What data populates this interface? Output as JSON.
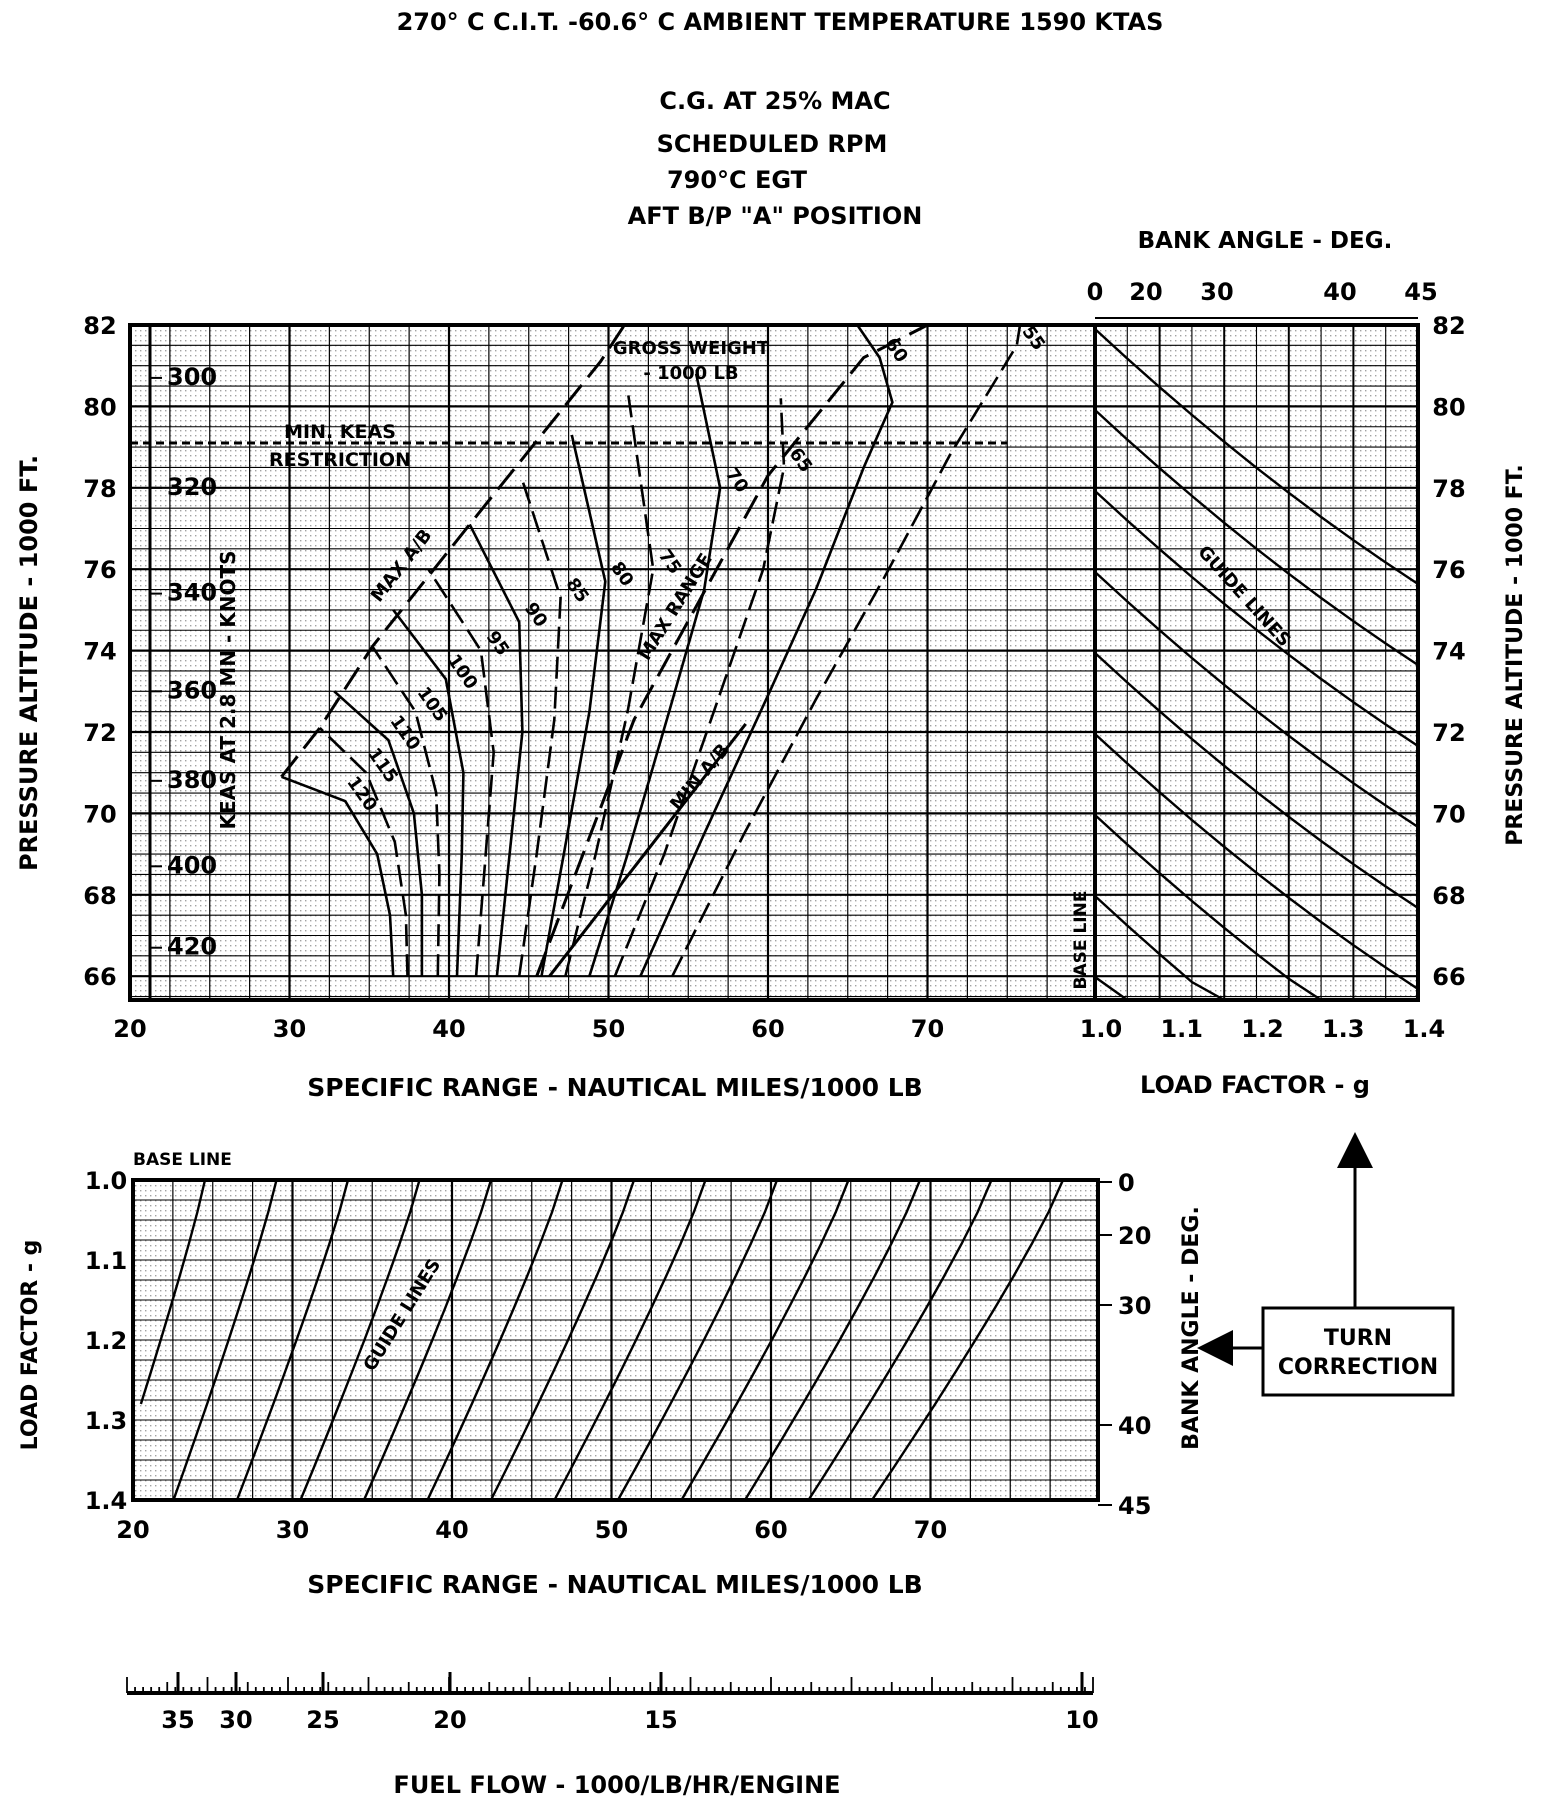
{
  "header": {
    "line1": "270° C  C.I.T.  -60.6° C  AMBIENT TEMPERATURE  1590 KTAS",
    "line2": "C.G. AT 25% MAC",
    "line3": "SCHEDULED RPM",
    "line4": "790°C EGT",
    "line5": "AFT B/P \"A\" POSITION"
  },
  "chart_data": [
    {
      "type": "line",
      "name": "main",
      "xlabel": "SPECIFIC RANGE - NAUTICAL MILES/1000 LB",
      "ylabel": "PRESSURE ALTITUDE - 1000 FT.",
      "xlim": [
        20,
        80
      ],
      "ylim": [
        65,
        82
      ],
      "x_ticks": [
        "20",
        "30",
        "40",
        "50",
        "60",
        "70"
      ],
      "y_ticks": [
        "66",
        "68",
        "70",
        "72",
        "74",
        "76",
        "78",
        "80",
        "82"
      ],
      "grid": true,
      "keas_scale": {
        "label": "KEAS AT 2.8 MN - KNOTS",
        "ticks": [
          {
            "label": "300",
            "alt": 80.7
          },
          {
            "label": "320",
            "alt": 78.0
          },
          {
            "label": "340",
            "alt": 75.4
          },
          {
            "label": "360",
            "alt": 73.0
          },
          {
            "label": "380",
            "alt": 70.8
          },
          {
            "label": "400",
            "alt": 68.7
          },
          {
            "label": "420",
            "alt": 66.7
          }
        ]
      },
      "min_keas": {
        "text": [
          "MIN. KEAS",
          "RESTRICTION"
        ],
        "alt": 79.1
      },
      "gross_weight_label": [
        "GROSS WEIGHT",
        "- 1000 LB"
      ],
      "weight_curves": [
        {
          "label": "120",
          "points": [
            [
              36.5,
              66
            ],
            [
              36.3,
              67.5
            ],
            [
              35.5,
              69
            ],
            [
              33.5,
              70.3
            ],
            [
              29.5,
              70.9
            ]
          ]
        },
        {
          "label": "115",
          "points": [
            [
              37.4,
              66
            ],
            [
              37.3,
              67.5
            ],
            [
              36.6,
              69.3
            ],
            [
              34.8,
              71
            ],
            [
              31.9,
              72.1
            ]
          ]
        },
        {
          "label": "110",
          "points": [
            [
              38.3,
              66
            ],
            [
              38.3,
              68
            ],
            [
              37.8,
              70
            ],
            [
              36.2,
              71.8
            ],
            [
              32.8,
              73.0
            ]
          ]
        },
        {
          "label": "105",
          "points": [
            [
              39.3,
              66
            ],
            [
              39.4,
              68.5
            ],
            [
              39.2,
              70.5
            ],
            [
              37.9,
              72.5
            ],
            [
              35.2,
              74.1
            ]
          ]
        },
        {
          "label": "100",
          "points": [
            [
              40.5,
              66
            ],
            [
              40.8,
              69
            ],
            [
              40.9,
              71
            ],
            [
              39.8,
              73.3
            ],
            [
              36.5,
              75.0
            ]
          ]
        },
        {
          "label": "95",
          "points": [
            [
              41.7,
              66
            ],
            [
              42.3,
              69
            ],
            [
              42.8,
              71.5
            ],
            [
              42.0,
              74
            ],
            [
              38.7,
              76.0
            ]
          ]
        },
        {
          "label": "90",
          "points": [
            [
              43.0,
              66
            ],
            [
              43.8,
              69
            ],
            [
              44.6,
              72
            ],
            [
              44.4,
              74.7
            ],
            [
              41.3,
              77.1
            ]
          ]
        },
        {
          "label": "85",
          "points": [
            [
              44.4,
              66
            ],
            [
              45.5,
              69
            ],
            [
              46.6,
              72.3
            ],
            [
              47.0,
              75.3
            ],
            [
              44.5,
              78.3
            ]
          ]
        },
        {
          "label": "80",
          "points": [
            [
              45.8,
              66
            ],
            [
              47.2,
              69
            ],
            [
              48.8,
              72.5
            ],
            [
              49.8,
              75.7
            ],
            [
              47.7,
              79.3
            ]
          ]
        },
        {
          "label": "75",
          "points": [
            [
              47.3,
              66
            ],
            [
              49.2,
              69
            ],
            [
              51.2,
              72.5
            ],
            [
              52.8,
              76
            ],
            [
              51.2,
              80.4
            ]
          ]
        },
        {
          "label": "70",
          "points": [
            [
              48.8,
              66
            ],
            [
              51.2,
              69
            ],
            [
              53.8,
              72.5
            ],
            [
              56.0,
              75.5
            ],
            [
              57.0,
              78
            ],
            [
              55.5,
              80.8
            ]
          ]
        },
        {
          "label": "65",
          "points": [
            [
              50.4,
              66
            ],
            [
              53.5,
              69
            ],
            [
              56.6,
              72.5
            ],
            [
              59.7,
              76
            ],
            [
              61.0,
              78.5
            ],
            [
              60.8,
              80.2
            ]
          ]
        },
        {
          "label": "60",
          "points": [
            [
              52,
              66
            ],
            [
              56,
              69.5
            ],
            [
              60,
              72.9
            ],
            [
              63,
              75.5
            ],
            [
              66,
              78.5
            ],
            [
              67.8,
              80.1
            ],
            [
              67,
              81.2
            ],
            [
              65.6,
              82
            ]
          ]
        },
        {
          "label": "55",
          "points": [
            [
              54,
              66
            ],
            [
              58.5,
              69.5
            ],
            [
              63,
              72.8
            ],
            [
              67.3,
              75.8
            ],
            [
              71.4,
              78.8
            ],
            [
              74.2,
              80.6
            ],
            [
              75.6,
              81.5
            ],
            [
              75.8,
              82
            ]
          ]
        }
      ],
      "boundaries": [
        {
          "label": "MAX A/B",
          "style": "dashed",
          "points": [
            [
              29.5,
              70.9
            ],
            [
              31.9,
              72.1
            ],
            [
              35.2,
              74.1
            ],
            [
              41.3,
              77.1
            ],
            [
              49.5,
              81.1
            ],
            [
              51,
              82
            ]
          ]
        },
        {
          "label": "MAX RANGE",
          "style": "dashed",
          "points": [
            [
              45.5,
              66
            ],
            [
              51.6,
              72.3
            ],
            [
              60,
              78.3
            ],
            [
              66,
              81.2
            ],
            [
              70,
              82
            ]
          ]
        },
        {
          "label": "MIN A/B",
          "style": "solid",
          "points": [
            [
              46.3,
              66
            ],
            [
              58.6,
              72.2
            ]
          ]
        }
      ]
    },
    {
      "type": "line",
      "name": "load-factor-correction",
      "title": "BANK ANGLE - DEG.",
      "xlabel": "LOAD FACTOR - g",
      "ylabel": "PRESSURE ALTITUDE - 1000 FT.",
      "x_ticks": [
        "1.0",
        "1.1",
        "1.2",
        "1.3",
        "1.4"
      ],
      "bank_ticks": [
        "0",
        "20",
        "30",
        "40",
        "45"
      ],
      "y_ticks": [
        "66",
        "68",
        "70",
        "72",
        "74",
        "76",
        "78",
        "80",
        "82"
      ],
      "text": [
        "GUIDE LINES",
        "BASE LINE"
      ],
      "grid": true
    },
    {
      "type": "line",
      "name": "turn-correction",
      "xlabel": "SPECIFIC RANGE - NAUTICAL MILES/1000 LB",
      "ylabel": "LOAD FACTOR - g",
      "ylabel2": "BANK ANGLE - DEG.",
      "x_ticks": [
        "20",
        "30",
        "40",
        "50",
        "60",
        "70"
      ],
      "y_ticks": [
        "1.0",
        "1.1",
        "1.2",
        "1.3",
        "1.4"
      ],
      "bank_ticks": [
        "0",
        "20",
        "30",
        "40",
        "45"
      ],
      "text": [
        "BASE LINE",
        "GUIDE LINES"
      ],
      "grid": true
    },
    {
      "type": "scale",
      "name": "fuel-flow",
      "xlabel": "FUEL FLOW - 1000/LB/HR/ENGINE",
      "ticks": [
        "35",
        "30",
        "25",
        "20",
        "15",
        "10"
      ]
    }
  ],
  "turn_correction_box": {
    "line1": "TURN",
    "line2": "CORRECTION"
  }
}
